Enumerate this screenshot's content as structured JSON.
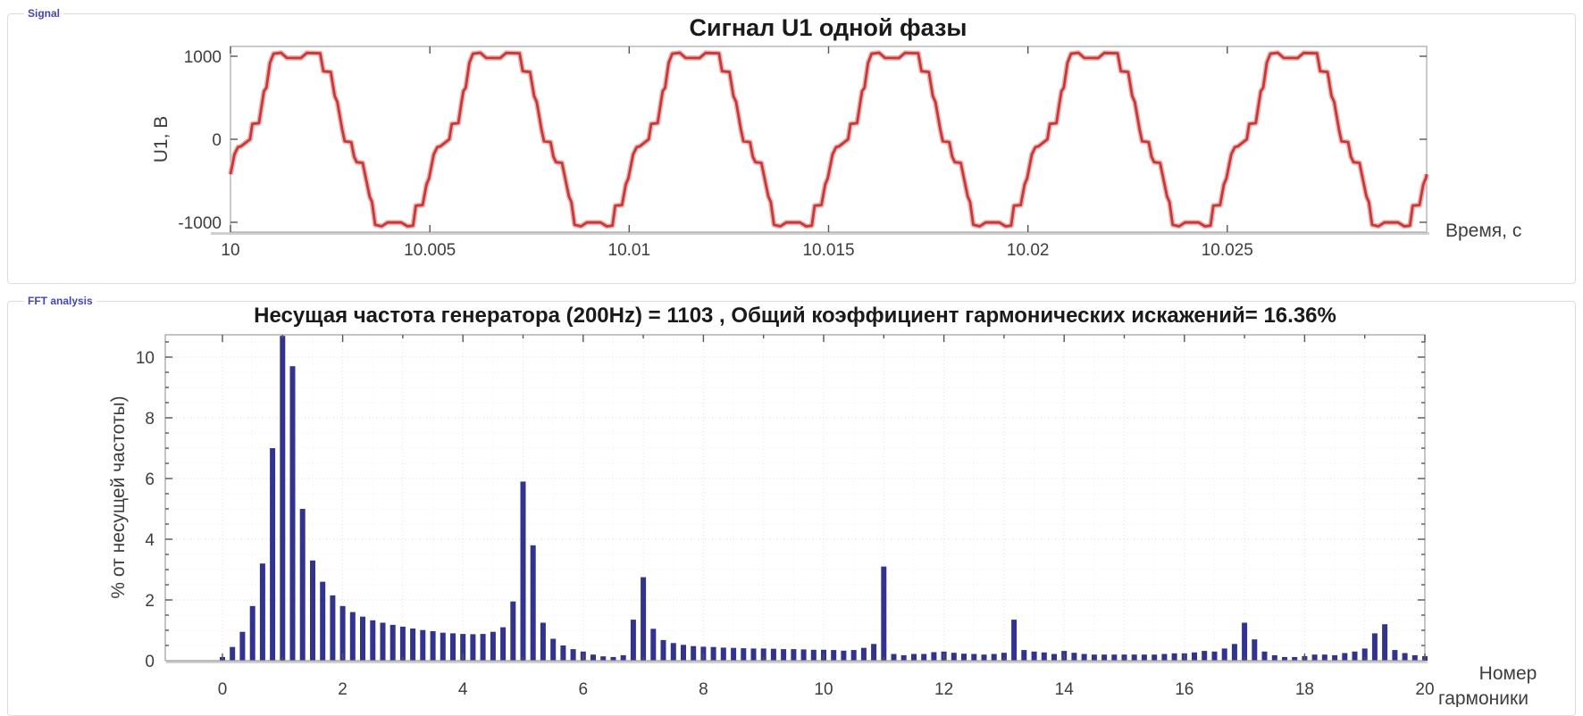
{
  "ui": {
    "panels": {
      "signal": {
        "group_label": "Signal"
      },
      "fft": {
        "group_label": "FFT analysis",
        "xlabel_line1": "Номер",
        "xlabel_line2": "гармоники"
      }
    },
    "colors": {
      "accent_label": "#4444b8",
      "signal_line": "#c63939",
      "signal_halo": "#eeb5b5",
      "bar_fill": "#31338f",
      "axis_box": "#9e9e9e",
      "axis_baseline": "#d0d0d0",
      "grid_major": "#d8d8d8",
      "grid_minor": "#ececec",
      "tick": "#555555"
    }
  },
  "chart_data": [
    {
      "type": "line",
      "title": "Сигнал U1 одной фазы",
      "xlabel": "Время, с",
      "ylabel": "U1, В",
      "x_range": [
        10,
        10.03
      ],
      "ylim": [
        -1118,
        1118
      ],
      "grid": false,
      "xticks": {
        "values": [
          10,
          10.005,
          10.01,
          10.015,
          10.02,
          10.025
        ],
        "labels": [
          "10",
          "10.005",
          "10.01",
          "10.015",
          "10.02",
          "10.025"
        ]
      },
      "yticks": {
        "values": [
          1000,
          0,
          -1000
        ],
        "labels": [
          "1000",
          "0",
          "-1000"
        ]
      },
      "signal": {
        "description": "stepped multilevel inverter phase voltage, 6 periods shown",
        "frequency_hz": 200,
        "period_s": 0.005,
        "peak_v": 1048,
        "phase_at_start": 0.902,
        "period_breakpoints": [
          [
            0.0,
            0
          ],
          [
            0.012,
            185
          ],
          [
            0.045,
            195
          ],
          [
            0.06,
            430
          ],
          [
            0.07,
            580
          ],
          [
            0.082,
            620
          ],
          [
            0.1,
            920
          ],
          [
            0.118,
            1030
          ],
          [
            0.155,
            1042
          ],
          [
            0.185,
            980
          ],
          [
            0.255,
            978
          ],
          [
            0.285,
            1040
          ],
          [
            0.352,
            1035
          ],
          [
            0.368,
            820
          ],
          [
            0.405,
            810
          ],
          [
            0.425,
            520
          ],
          [
            0.438,
            450
          ],
          [
            0.462,
            120
          ],
          [
            0.475,
            -25
          ],
          [
            0.508,
            -35
          ],
          [
            0.522,
            -210
          ],
          [
            0.535,
            -275
          ],
          [
            0.565,
            -285
          ],
          [
            0.6,
            -690
          ],
          [
            0.612,
            -755
          ],
          [
            0.628,
            -1030
          ],
          [
            0.66,
            -1048
          ],
          [
            0.69,
            -1002
          ],
          [
            0.758,
            -1002
          ],
          [
            0.79,
            -1048
          ],
          [
            0.818,
            -1040
          ],
          [
            0.832,
            -800
          ],
          [
            0.866,
            -792
          ],
          [
            0.885,
            -545
          ],
          [
            0.898,
            -470
          ],
          [
            0.922,
            -180
          ],
          [
            0.94,
            -95
          ],
          [
            0.955,
            -85
          ],
          [
            1.0,
            0
          ]
        ]
      }
    },
    {
      "type": "bar",
      "title": "Несущая частота генератора (200Hz) = 1103 , Общий коэффициент гармонических искажений= 16.36%",
      "xlabel": "Номер гармоники",
      "ylabel": "% от несущей частоты)",
      "xlim": [
        -0.95,
        20
      ],
      "ylim": [
        0,
        10.74
      ],
      "grid": true,
      "fundamental_hz": 200,
      "fundamental_magnitude": 1103,
      "thd_percent": 16.36,
      "x_start": 0,
      "x_step": 0.166667,
      "xticks": {
        "values": [
          0,
          2,
          4,
          6,
          8,
          10,
          12,
          14,
          16,
          18,
          20
        ],
        "labels": [
          "0",
          "2",
          "4",
          "6",
          "8",
          "10",
          "12",
          "14",
          "16",
          "18",
          "20"
        ]
      },
      "yticks": {
        "values": [
          0,
          2,
          4,
          6,
          8,
          10
        ],
        "labels": [
          "0",
          "2",
          "4",
          "6",
          "8",
          "10"
        ]
      },
      "values": [
        0.12,
        0.45,
        0.95,
        1.8,
        3.2,
        7.0,
        10.7,
        9.7,
        5.0,
        3.3,
        2.6,
        2.15,
        1.8,
        1.6,
        1.45,
        1.33,
        1.25,
        1.18,
        1.12,
        1.06,
        1.01,
        0.97,
        0.92,
        0.9,
        0.88,
        0.87,
        0.88,
        0.95,
        1.1,
        1.95,
        5.9,
        3.8,
        1.25,
        0.72,
        0.5,
        0.38,
        0.3,
        0.2,
        0.14,
        0.12,
        0.18,
        1.35,
        2.75,
        1.05,
        0.68,
        0.58,
        0.52,
        0.48,
        0.46,
        0.45,
        0.43,
        0.42,
        0.41,
        0.4,
        0.4,
        0.39,
        0.38,
        0.38,
        0.37,
        0.36,
        0.36,
        0.35,
        0.33,
        0.35,
        0.42,
        0.55,
        3.1,
        0.22,
        0.18,
        0.22,
        0.22,
        0.28,
        0.3,
        0.26,
        0.23,
        0.22,
        0.2,
        0.22,
        0.26,
        1.35,
        0.35,
        0.3,
        0.27,
        0.22,
        0.32,
        0.26,
        0.22,
        0.2,
        0.2,
        0.2,
        0.2,
        0.2,
        0.2,
        0.2,
        0.22,
        0.24,
        0.24,
        0.27,
        0.32,
        0.3,
        0.4,
        0.55,
        1.25,
        0.7,
        0.3,
        0.18,
        0.12,
        0.12,
        0.15,
        0.2,
        0.2,
        0.18,
        0.25,
        0.3,
        0.4,
        0.9,
        1.2,
        0.35,
        0.25,
        0.18,
        0.15
      ]
    }
  ]
}
